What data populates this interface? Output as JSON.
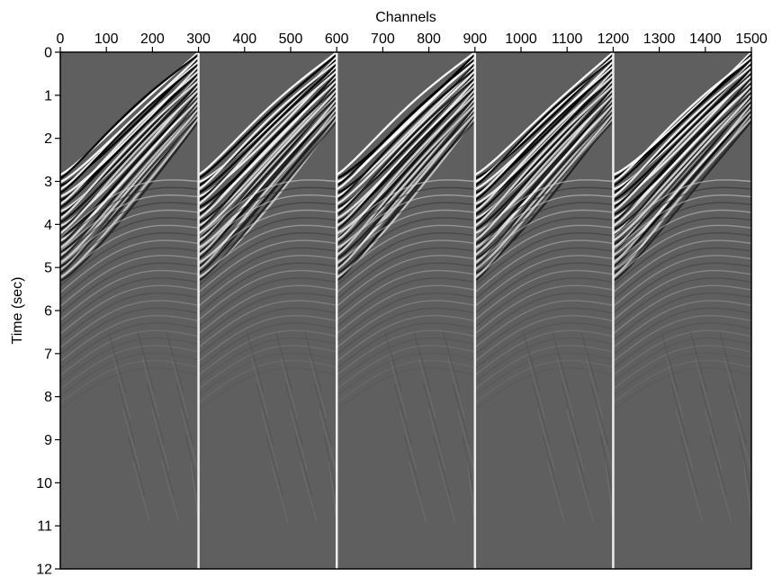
{
  "chart_data": {
    "type": "heatmap",
    "title": "",
    "xlabel": "Channels",
    "ylabel": "Time (sec)",
    "x_axis_position": "top",
    "xlim": [
      0,
      1500
    ],
    "ylim": [
      0,
      12
    ],
    "y_inverted": true,
    "xticks": [
      0,
      100,
      200,
      300,
      400,
      500,
      600,
      700,
      800,
      900,
      1000,
      1100,
      1200,
      1300,
      1400,
      1500
    ],
    "yticks": [
      0,
      1,
      2,
      3,
      4,
      5,
      6,
      7,
      8,
      9,
      10,
      11,
      12
    ],
    "panel_boundaries": [
      300,
      600,
      900,
      1200
    ],
    "panels": [
      {
        "channels": [
          0,
          300
        ]
      },
      {
        "channels": [
          300,
          600
        ]
      },
      {
        "channels": [
          600,
          900
        ]
      },
      {
        "channels": [
          900,
          1200
        ]
      },
      {
        "channels": [
          1200,
          1500
        ]
      }
    ],
    "grid": false,
    "legend": "none",
    "colormap": "gray",
    "colors": {
      "background": "#5f5f5f",
      "positive": "#ffffff",
      "negative": "#000000"
    }
  }
}
